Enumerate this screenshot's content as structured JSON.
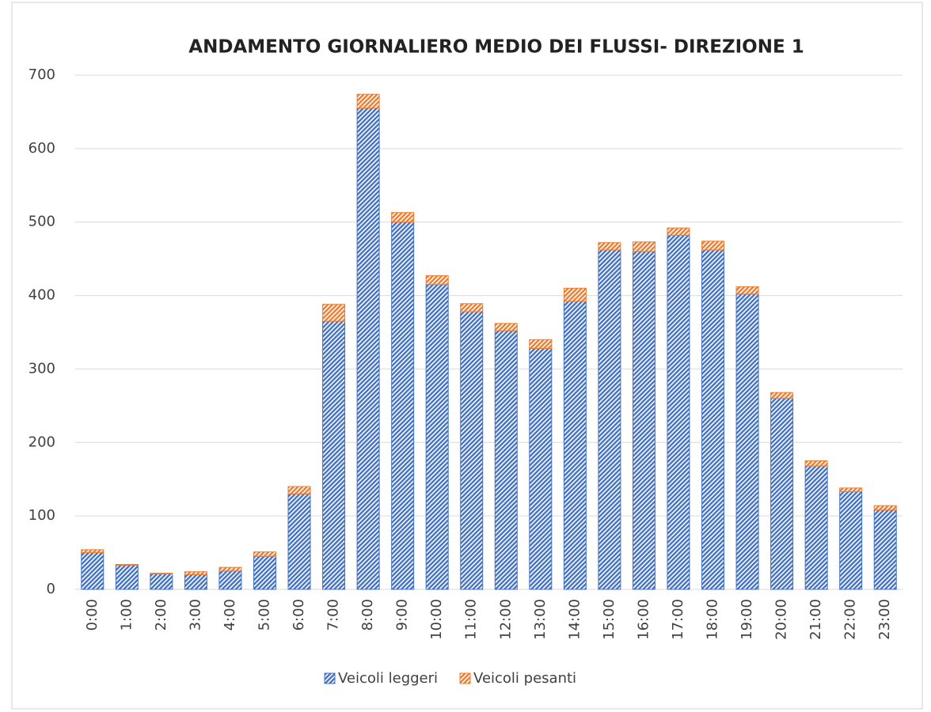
{
  "chart_data": {
    "type": "stacked_bar",
    "title": "ANDAMENTO GIORNALIERO MEDIO DEI FLUSSI- DIREZIONE 1",
    "categories": [
      "0:00",
      "1:00",
      "2:00",
      "3:00",
      "4:00",
      "5:00",
      "6:00",
      "7:00",
      "8:00",
      "9:00",
      "10:00",
      "11:00",
      "12:00",
      "13:00",
      "14:00",
      "15:00",
      "16:00",
      "17:00",
      "18:00",
      "19:00",
      "20:00",
      "21:00",
      "22:00",
      "23:00"
    ],
    "series": [
      {
        "name": "Veicoli leggeri",
        "color": "#4472c4",
        "values": [
          50,
          33,
          21,
          20,
          25,
          45,
          130,
          365,
          655,
          500,
          415,
          378,
          352,
          328,
          392,
          462,
          460,
          482,
          462,
          402,
          260,
          168,
          133,
          108
        ]
      },
      {
        "name": "Veicoli pesanti",
        "color": "#ed7d31",
        "values": [
          4,
          1,
          1,
          4,
          5,
          6,
          10,
          23,
          19,
          13,
          12,
          11,
          10,
          12,
          18,
          10,
          13,
          10,
          12,
          10,
          8,
          7,
          5,
          6
        ]
      }
    ],
    "ylim": [
      0,
      700
    ],
    "yticks": [
      0,
      100,
      200,
      300,
      400,
      500,
      600,
      700
    ],
    "grid": true,
    "legend": "bottom"
  }
}
